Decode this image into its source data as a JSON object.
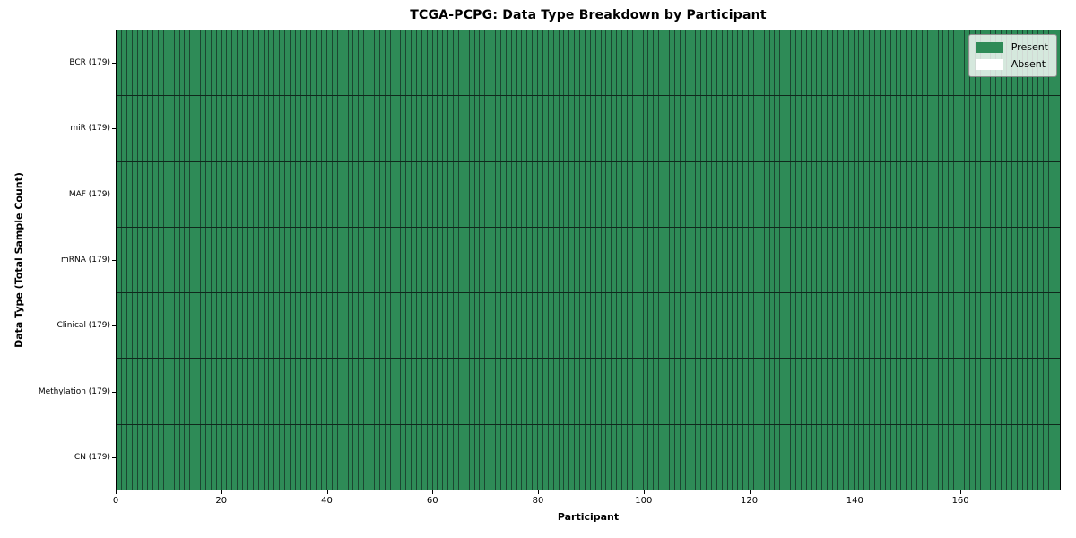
{
  "figure": {
    "title": "TCGA-PCPG: Data Type Breakdown by Participant"
  },
  "axes": {
    "xlabel": "Participant",
    "ylabel": "Data Type (Total Sample Count)"
  },
  "legend": {
    "items": [
      {
        "label": "Present",
        "color": "#2e8b57"
      },
      {
        "label": "Absent",
        "color": "#ffffff"
      }
    ],
    "position": "upper right"
  },
  "chart_data": {
    "type": "heatmap",
    "title": "TCGA-PCPG: Data Type Breakdown by Participant",
    "xlabel": "Participant",
    "ylabel": "Data Type (Total Sample Count)",
    "x_range": [
      0,
      179
    ],
    "x_ticks": [
      0,
      20,
      40,
      60,
      80,
      100,
      120,
      140,
      160
    ],
    "n_participants": 179,
    "rows": [
      {
        "label": "BCR (179)",
        "data_type": "BCR",
        "total_sample_count": 179,
        "present_count": 179
      },
      {
        "label": "miR (179)",
        "data_type": "miR",
        "total_sample_count": 179,
        "present_count": 179
      },
      {
        "label": "MAF (179)",
        "data_type": "MAF",
        "total_sample_count": 179,
        "present_count": 179
      },
      {
        "label": "mRNA (179)",
        "data_type": "mRNA",
        "total_sample_count": 179,
        "present_count": 179
      },
      {
        "label": "Clinical (179)",
        "data_type": "Clinical",
        "total_sample_count": 179,
        "present_count": 179
      },
      {
        "label": "Methylation (179)",
        "data_type": "Methylation",
        "total_sample_count": 179,
        "present_count": 179
      },
      {
        "label": "CN (179)",
        "data_type": "CN",
        "total_sample_count": 179,
        "present_count": 179
      }
    ],
    "all_present": true,
    "cell_colors": {
      "present": "#2e8b57",
      "absent": "#ffffff"
    },
    "grid": "cell borders on",
    "legend_entries": [
      "Present",
      "Absent"
    ],
    "legend_position": "upper right"
  }
}
